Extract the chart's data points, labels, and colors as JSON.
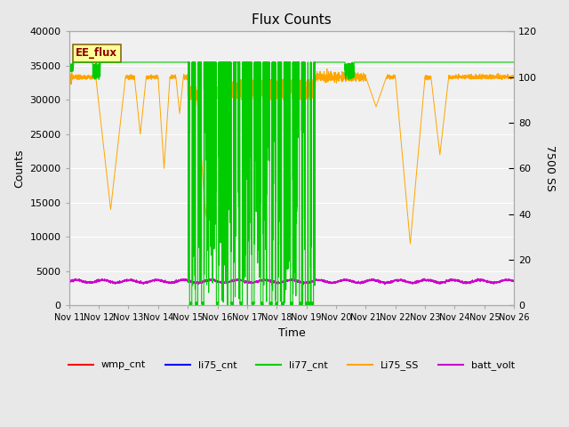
{
  "title": "Flux Counts",
  "xlabel": "Time",
  "ylabel_left": "Counts",
  "ylabel_right": "7500 SS",
  "ylim_left": [
    0,
    40000
  ],
  "ylim_right": [
    0,
    120
  ],
  "bg_color": "#e8e8e8",
  "plot_bg_color": "#f0f0f0",
  "legend_entries": [
    "wmp_cnt",
    "li75_cnt",
    "li77_cnt",
    "Li75_SS",
    "batt_volt"
  ],
  "legend_colors": [
    "#ff0000",
    "#0000ff",
    "#00cc00",
    "#ffa500",
    "#cc00cc"
  ],
  "annotation_text": "EE_flux",
  "annotation_bg": "#ffff99",
  "annotation_border": "#8b6914",
  "xtick_labels": [
    "Nov 11",
    "Nov 12",
    "Nov 13",
    "Nov 14",
    "Nov 15",
    "Nov 16",
    "Nov 17",
    "Nov 18",
    "Nov 19",
    "Nov 20",
    "Nov 21",
    "Nov 22",
    "Nov 23",
    "Nov 24",
    "Nov 25",
    "Nov 26"
  ],
  "yticks_left": [
    0,
    5000,
    10000,
    15000,
    20000,
    25000,
    30000,
    35000,
    40000
  ],
  "yticks_right": [
    0,
    20,
    40,
    60,
    80,
    100,
    120
  ],
  "scale": 333.33
}
